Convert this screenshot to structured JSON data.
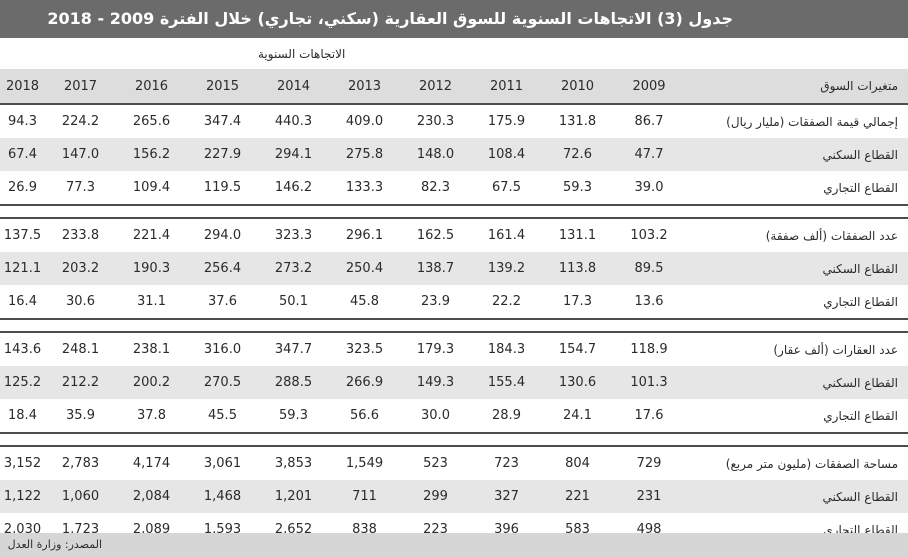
{
  "title": "جدول (3) الاتجاهات السنوية للسوق العقارية (سكني، تجاري) خلال الفترة 2009 - 2018",
  "group_header": "الاتجاهات السنوية",
  "header": {
    "label": "متغيرات السوق",
    "years": [
      "2009",
      "2010",
      "2011",
      "2012",
      "2013",
      "2014",
      "2015",
      "2016",
      "2017",
      "2018"
    ]
  },
  "sections": [
    {
      "rows": [
        {
          "label": "إجمالي قيمة الصفقات (مليار ريال)",
          "values": [
            "86.7",
            "131.8",
            "175.9",
            "230.3",
            "409.0",
            "440.3",
            "347.4",
            "265.6",
            "224.2",
            "94.3"
          ]
        },
        {
          "label": "القطاع السكني",
          "values": [
            "47.7",
            "72.6",
            "108.4",
            "148.0",
            "275.8",
            "294.1",
            "227.9",
            "156.2",
            "147.0",
            "67.4"
          ]
        },
        {
          "label": "القطاع التجاري",
          "values": [
            "39.0",
            "59.3",
            "67.5",
            "82.3",
            "133.3",
            "146.2",
            "119.5",
            "109.4",
            "77.3",
            "26.9"
          ]
        }
      ]
    },
    {
      "rows": [
        {
          "label": "عدد الصفقات (ألف صفقة)",
          "values": [
            "103.2",
            "131.1",
            "161.4",
            "162.5",
            "296.1",
            "323.3",
            "294.0",
            "221.4",
            "233.8",
            "137.5"
          ]
        },
        {
          "label": "القطاع السكني",
          "values": [
            "89.5",
            "113.8",
            "139.2",
            "138.7",
            "250.4",
            "273.2",
            "256.4",
            "190.3",
            "203.2",
            "121.1"
          ]
        },
        {
          "label": "القطاع التجاري",
          "values": [
            "13.6",
            "17.3",
            "22.2",
            "23.9",
            "45.8",
            "50.1",
            "37.6",
            "31.1",
            "30.6",
            "16.4"
          ]
        }
      ]
    },
    {
      "rows": [
        {
          "label": "عدد العقارات (ألف عقار)",
          "values": [
            "118.9",
            "154.7",
            "184.3",
            "179.3",
            "323.5",
            "347.7",
            "316.0",
            "238.1",
            "248.1",
            "143.6"
          ]
        },
        {
          "label": "القطاع السكني",
          "values": [
            "101.3",
            "130.6",
            "155.4",
            "149.3",
            "266.9",
            "288.5",
            "270.5",
            "200.2",
            "212.2",
            "125.2"
          ]
        },
        {
          "label": "القطاع التجاري",
          "values": [
            "17.6",
            "24.1",
            "28.9",
            "30.0",
            "56.6",
            "59.3",
            "45.5",
            "37.8",
            "35.9",
            "18.4"
          ]
        }
      ]
    },
    {
      "rows": [
        {
          "label": "مساحة الصفقات (مليون متر مربع)",
          "values": [
            "729",
            "804",
            "723",
            "523",
            "1,549",
            "3,853",
            "3,061",
            "4,174",
            "2,783",
            "3,152"
          ]
        },
        {
          "label": "القطاع السكني",
          "values": [
            "231",
            "221",
            "327",
            "299",
            "711",
            "1,201",
            "1,468",
            "2,084",
            "1,060",
            "1,122"
          ]
        },
        {
          "label": "القطاع التجاري",
          "values": [
            "498",
            "583",
            "396",
            "223",
            "838",
            "2,652",
            "1,593",
            "2,089",
            "1,723",
            "2,030"
          ]
        }
      ]
    }
  ],
  "source": "المصدر: وزارة العدل"
}
